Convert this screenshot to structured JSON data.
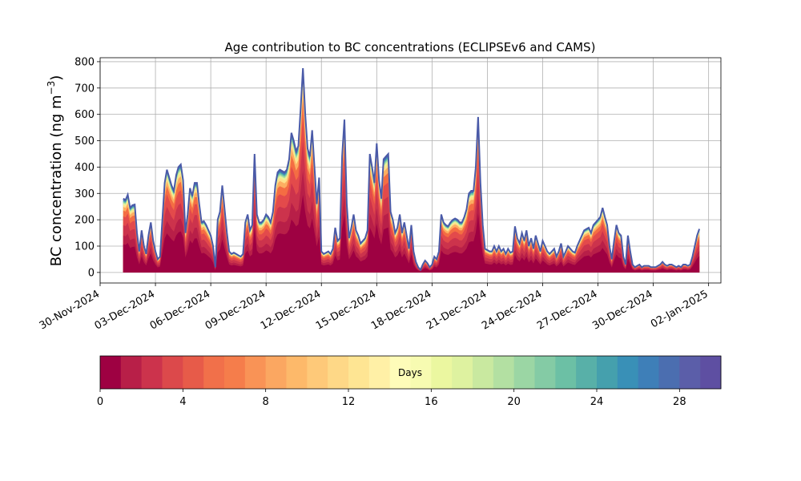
{
  "chart_data": {
    "type": "area",
    "title": "Age contribution to BC concentrations (ECLIPSEv6 and CAMS)",
    "ylabel_main": "BC concentration (ng m",
    "ylabel_sup": "−3",
    "ylabel_tail": ")",
    "xlabel": "",
    "xlim": [
      "2024-11-30",
      "2025-01-02T16:00"
    ],
    "ylim": [
      -40,
      815
    ],
    "yticks": [
      0,
      100,
      200,
      300,
      400,
      500,
      600,
      700,
      800
    ],
    "xticks": [
      "2024-11-30",
      "2024-12-03",
      "2024-12-06",
      "2024-12-09",
      "2024-12-12",
      "2024-12-15",
      "2024-12-18",
      "2024-12-21",
      "2024-12-24",
      "2024-12-27",
      "2024-12-30",
      "2025-01-02"
    ],
    "xtick_labels": [
      "30-Nov-2024",
      "03-Dec-2024",
      "06-Dec-2024",
      "09-Dec-2024",
      "12-Dec-2024",
      "15-Dec-2024",
      "18-Dec-2024",
      "21-Dec-2024",
      "24-Dec-2024",
      "27-Dec-2024",
      "30-Dec-2024",
      "02-Jan-2025"
    ],
    "grid": true,
    "series_description_total": "Total BC (all ages, top envelope)",
    "total": {
      "x": [
        "2024-12-01T06:00",
        "2024-12-01T09:00",
        "2024-12-01T12:00",
        "2024-12-01T15:00",
        "2024-12-01T18:00",
        "2024-12-01T21:00",
        "2024-12-02T00:00",
        "2024-12-02T03:00",
        "2024-12-02T06:00",
        "2024-12-02T09:00",
        "2024-12-02T12:00",
        "2024-12-02T15:00",
        "2024-12-02T18:00",
        "2024-12-02T21:00",
        "2024-12-03T00:00",
        "2024-12-03T03:00",
        "2024-12-03T06:00",
        "2024-12-03T09:00",
        "2024-12-03T12:00",
        "2024-12-03T15:00",
        "2024-12-03T18:00",
        "2024-12-03T21:00",
        "2024-12-04T00:00",
        "2024-12-04T03:00",
        "2024-12-04T06:00",
        "2024-12-04T09:00",
        "2024-12-04T12:00",
        "2024-12-04T15:00",
        "2024-12-04T18:00",
        "2024-12-04T21:00",
        "2024-12-05T00:00",
        "2024-12-05T03:00",
        "2024-12-05T06:00",
        "2024-12-05T09:00",
        "2024-12-05T12:00",
        "2024-12-05T15:00",
        "2024-12-05T18:00",
        "2024-12-05T21:00",
        "2024-12-06T00:00",
        "2024-12-06T03:00",
        "2024-12-06T06:00",
        "2024-12-06T09:00",
        "2024-12-06T12:00",
        "2024-12-06T15:00",
        "2024-12-06T18:00",
        "2024-12-06T21:00",
        "2024-12-07T00:00",
        "2024-12-07T03:00",
        "2024-12-07T06:00",
        "2024-12-07T09:00",
        "2024-12-07T12:00",
        "2024-12-07T15:00",
        "2024-12-07T18:00",
        "2024-12-07T21:00",
        "2024-12-08T00:00",
        "2024-12-08T03:00",
        "2024-12-08T06:00",
        "2024-12-08T09:00",
        "2024-12-08T12:00",
        "2024-12-08T15:00",
        "2024-12-08T18:00",
        "2024-12-08T21:00",
        "2024-12-09T00:00",
        "2024-12-09T03:00",
        "2024-12-09T06:00",
        "2024-12-09T09:00",
        "2024-12-09T12:00",
        "2024-12-09T15:00",
        "2024-12-09T18:00",
        "2024-12-09T21:00",
        "2024-12-10T00:00",
        "2024-12-10T03:00",
        "2024-12-10T06:00",
        "2024-12-10T09:00",
        "2024-12-10T12:00",
        "2024-12-10T15:00",
        "2024-12-10T18:00",
        "2024-12-10T21:00",
        "2024-12-11T00:00",
        "2024-12-11T03:00",
        "2024-12-11T06:00",
        "2024-12-11T09:00",
        "2024-12-11T12:00",
        "2024-12-11T15:00",
        "2024-12-11T18:00",
        "2024-12-11T21:00",
        "2024-12-12T00:00",
        "2024-12-12T03:00",
        "2024-12-12T06:00",
        "2024-12-12T09:00",
        "2024-12-12T12:00",
        "2024-12-12T15:00",
        "2024-12-12T18:00",
        "2024-12-12T21:00",
        "2024-12-13T00:00",
        "2024-12-13T03:00",
        "2024-12-13T06:00",
        "2024-12-13T09:00",
        "2024-12-13T12:00",
        "2024-12-13T15:00",
        "2024-12-13T18:00",
        "2024-12-13T21:00",
        "2024-12-14T00:00",
        "2024-12-14T03:00",
        "2024-12-14T06:00",
        "2024-12-14T09:00",
        "2024-12-14T12:00",
        "2024-12-14T15:00",
        "2024-12-14T18:00",
        "2024-12-14T21:00",
        "2024-12-15T00:00",
        "2024-12-15T03:00",
        "2024-12-15T06:00",
        "2024-12-15T09:00",
        "2024-12-15T12:00",
        "2024-12-15T15:00",
        "2024-12-15T18:00",
        "2024-12-15T21:00",
        "2024-12-16T00:00",
        "2024-12-16T03:00",
        "2024-12-16T06:00",
        "2024-12-16T09:00",
        "2024-12-16T12:00",
        "2024-12-16T15:00",
        "2024-12-16T18:00",
        "2024-12-16T21:00",
        "2024-12-17T00:00",
        "2024-12-17T03:00",
        "2024-12-17T06:00",
        "2024-12-17T09:00",
        "2024-12-17T12:00",
        "2024-12-17T15:00",
        "2024-12-17T18:00",
        "2024-12-17T21:00",
        "2024-12-18T00:00",
        "2024-12-18T03:00",
        "2024-12-18T06:00",
        "2024-12-18T09:00",
        "2024-12-18T12:00",
        "2024-12-18T15:00",
        "2024-12-18T18:00",
        "2024-12-18T21:00",
        "2024-12-19T00:00",
        "2024-12-19T03:00",
        "2024-12-19T06:00",
        "2024-12-19T09:00",
        "2024-12-19T12:00",
        "2024-12-19T15:00",
        "2024-12-19T18:00",
        "2024-12-19T21:00",
        "2024-12-20T00:00",
        "2024-12-20T03:00",
        "2024-12-20T06:00",
        "2024-12-20T09:00",
        "2024-12-20T12:00",
        "2024-12-20T15:00",
        "2024-12-20T18:00",
        "2024-12-20T21:00",
        "2024-12-21T00:00",
        "2024-12-21T03:00",
        "2024-12-21T06:00",
        "2024-12-21T09:00",
        "2024-12-21T12:00",
        "2024-12-21T15:00",
        "2024-12-21T18:00",
        "2024-12-21T21:00",
        "2024-12-22T00:00",
        "2024-12-22T03:00",
        "2024-12-22T06:00",
        "2024-12-22T09:00",
        "2024-12-22T12:00",
        "2024-12-22T15:00",
        "2024-12-22T18:00",
        "2024-12-22T21:00",
        "2024-12-23T00:00",
        "2024-12-23T03:00",
        "2024-12-23T06:00",
        "2024-12-23T09:00",
        "2024-12-23T12:00",
        "2024-12-23T15:00",
        "2024-12-23T18:00",
        "2024-12-23T21:00",
        "2024-12-24T00:00",
        "2024-12-24T03:00",
        "2024-12-24T06:00",
        "2024-12-24T09:00",
        "2024-12-24T12:00",
        "2024-12-24T15:00",
        "2024-12-24T18:00",
        "2024-12-24T21:00",
        "2024-12-25T00:00",
        "2024-12-25T03:00",
        "2024-12-25T06:00",
        "2024-12-25T09:00",
        "2024-12-25T12:00",
        "2024-12-25T15:00",
        "2024-12-25T18:00",
        "2024-12-25T21:00",
        "2024-12-26T00:00",
        "2024-12-26T03:00",
        "2024-12-26T06:00",
        "2024-12-26T09:00",
        "2024-12-26T12:00",
        "2024-12-26T15:00",
        "2024-12-26T18:00",
        "2024-12-26T21:00",
        "2024-12-27T00:00",
        "2024-12-27T03:00",
        "2024-12-27T06:00",
        "2024-12-27T09:00",
        "2024-12-27T12:00",
        "2024-12-27T15:00",
        "2024-12-27T18:00",
        "2024-12-27T21:00",
        "2024-12-28T00:00",
        "2024-12-28T03:00",
        "2024-12-28T06:00",
        "2024-12-28T09:00",
        "2024-12-28T12:00",
        "2024-12-28T15:00",
        "2024-12-28T18:00",
        "2024-12-28T21:00",
        "2024-12-29T00:00",
        "2024-12-29T03:00",
        "2024-12-29T06:00",
        "2024-12-29T09:00",
        "2024-12-29T12:00",
        "2024-12-29T15:00",
        "2024-12-29T18:00",
        "2024-12-29T21:00",
        "2024-12-30T00:00",
        "2024-12-30T03:00",
        "2024-12-30T06:00",
        "2024-12-30T09:00",
        "2024-12-30T12:00",
        "2024-12-30T15:00",
        "2024-12-30T18:00",
        "2024-12-30T21:00",
        "2024-12-31T00:00",
        "2024-12-31T03:00",
        "2024-12-31T06:00",
        "2024-12-31T09:00",
        "2024-12-31T12:00",
        "2024-12-31T15:00",
        "2024-12-31T18:00",
        "2024-12-31T21:00",
        "2025-01-01T00:00",
        "2025-01-01T03:00",
        "2025-01-01T06:00",
        "2025-01-01T09:00",
        "2025-01-01T12:00"
      ],
      "y": [
        280,
        275,
        295,
        245,
        255,
        258,
        150,
        80,
        160,
        100,
        70,
        140,
        190,
        120,
        80,
        50,
        60,
        200,
        340,
        390,
        360,
        330,
        310,
        370,
        400,
        410,
        350,
        150,
        220,
        320,
        290,
        340,
        340,
        260,
        190,
        195,
        180,
        160,
        140,
        100,
        20,
        200,
        230,
        330,
        240,
        150,
        80,
        70,
        75,
        70,
        65,
        60,
        70,
        190,
        220,
        160,
        180,
        450,
        220,
        190,
        190,
        200,
        220,
        210,
        190,
        230,
        330,
        380,
        390,
        385,
        380,
        390,
        430,
        530,
        500,
        460,
        480,
        620,
        775,
        600,
        470,
        440,
        540,
        400,
        260,
        360,
        80,
        70,
        75,
        80,
        70,
        90,
        170,
        120,
        130,
        440,
        580,
        260,
        130,
        170,
        220,
        160,
        140,
        110,
        120,
        130,
        160,
        450,
        400,
        340,
        490,
        350,
        280,
        430,
        440,
        450,
        230,
        200,
        150,
        170,
        220,
        150,
        190,
        140,
        90,
        180,
        80,
        40,
        20,
        10,
        30,
        45,
        35,
        20,
        30,
        60,
        50,
        80,
        220,
        190,
        180,
        175,
        190,
        200,
        205,
        200,
        190,
        190,
        210,
        240,
        300,
        310,
        310,
        400,
        590,
        340,
        180,
        90,
        85,
        80,
        80,
        100,
        80,
        100,
        80,
        90,
        70,
        90,
        75,
        80,
        175,
        130,
        110,
        150,
        120,
        160,
        100,
        130,
        90,
        140,
        110,
        80,
        120,
        100,
        80,
        70,
        80,
        90,
        60,
        80,
        110,
        60,
        80,
        100,
        90,
        80,
        75,
        100,
        120,
        140,
        160,
        165,
        170,
        150,
        180,
        190,
        200,
        210,
        245,
        210,
        180,
        100,
        50,
        120,
        180,
        150,
        140,
        60,
        30,
        140,
        80,
        30,
        20,
        25,
        30,
        20,
        25,
        25,
        25,
        20,
        20,
        20,
        25,
        30,
        40,
        30,
        25,
        30,
        30,
        25,
        20,
        25,
        20,
        30,
        30,
        25,
        30,
        60,
        100,
        140,
        165
      ],
      "color": "#4a5aa8"
    },
    "days_colorbar": {
      "label": "Days",
      "vmin": 0,
      "vmax": 30,
      "ticks": [
        0,
        4,
        8,
        12,
        16,
        20,
        24,
        28
      ],
      "colors": [
        "#9e0142",
        "#b81f48",
        "#cc334c",
        "#dc494b",
        "#e75b49",
        "#f1704a",
        "#f57d4b",
        "#f99356",
        "#fba761",
        "#fdb96a",
        "#fec979",
        "#fed887",
        "#fee593",
        "#fff0a6",
        "#fefcb9",
        "#f7fbb1",
        "#ebf7a0",
        "#def2a0",
        "#c9e9a0",
        "#b3e0a2",
        "#9bd6a4",
        "#84cba5",
        "#6cc0a5",
        "#58b0a8",
        "#45a0ad",
        "#3990b7",
        "#3e7fb8",
        "#4b6eb0",
        "#5b5ea9",
        "#5e4fa2"
      ]
    }
  }
}
